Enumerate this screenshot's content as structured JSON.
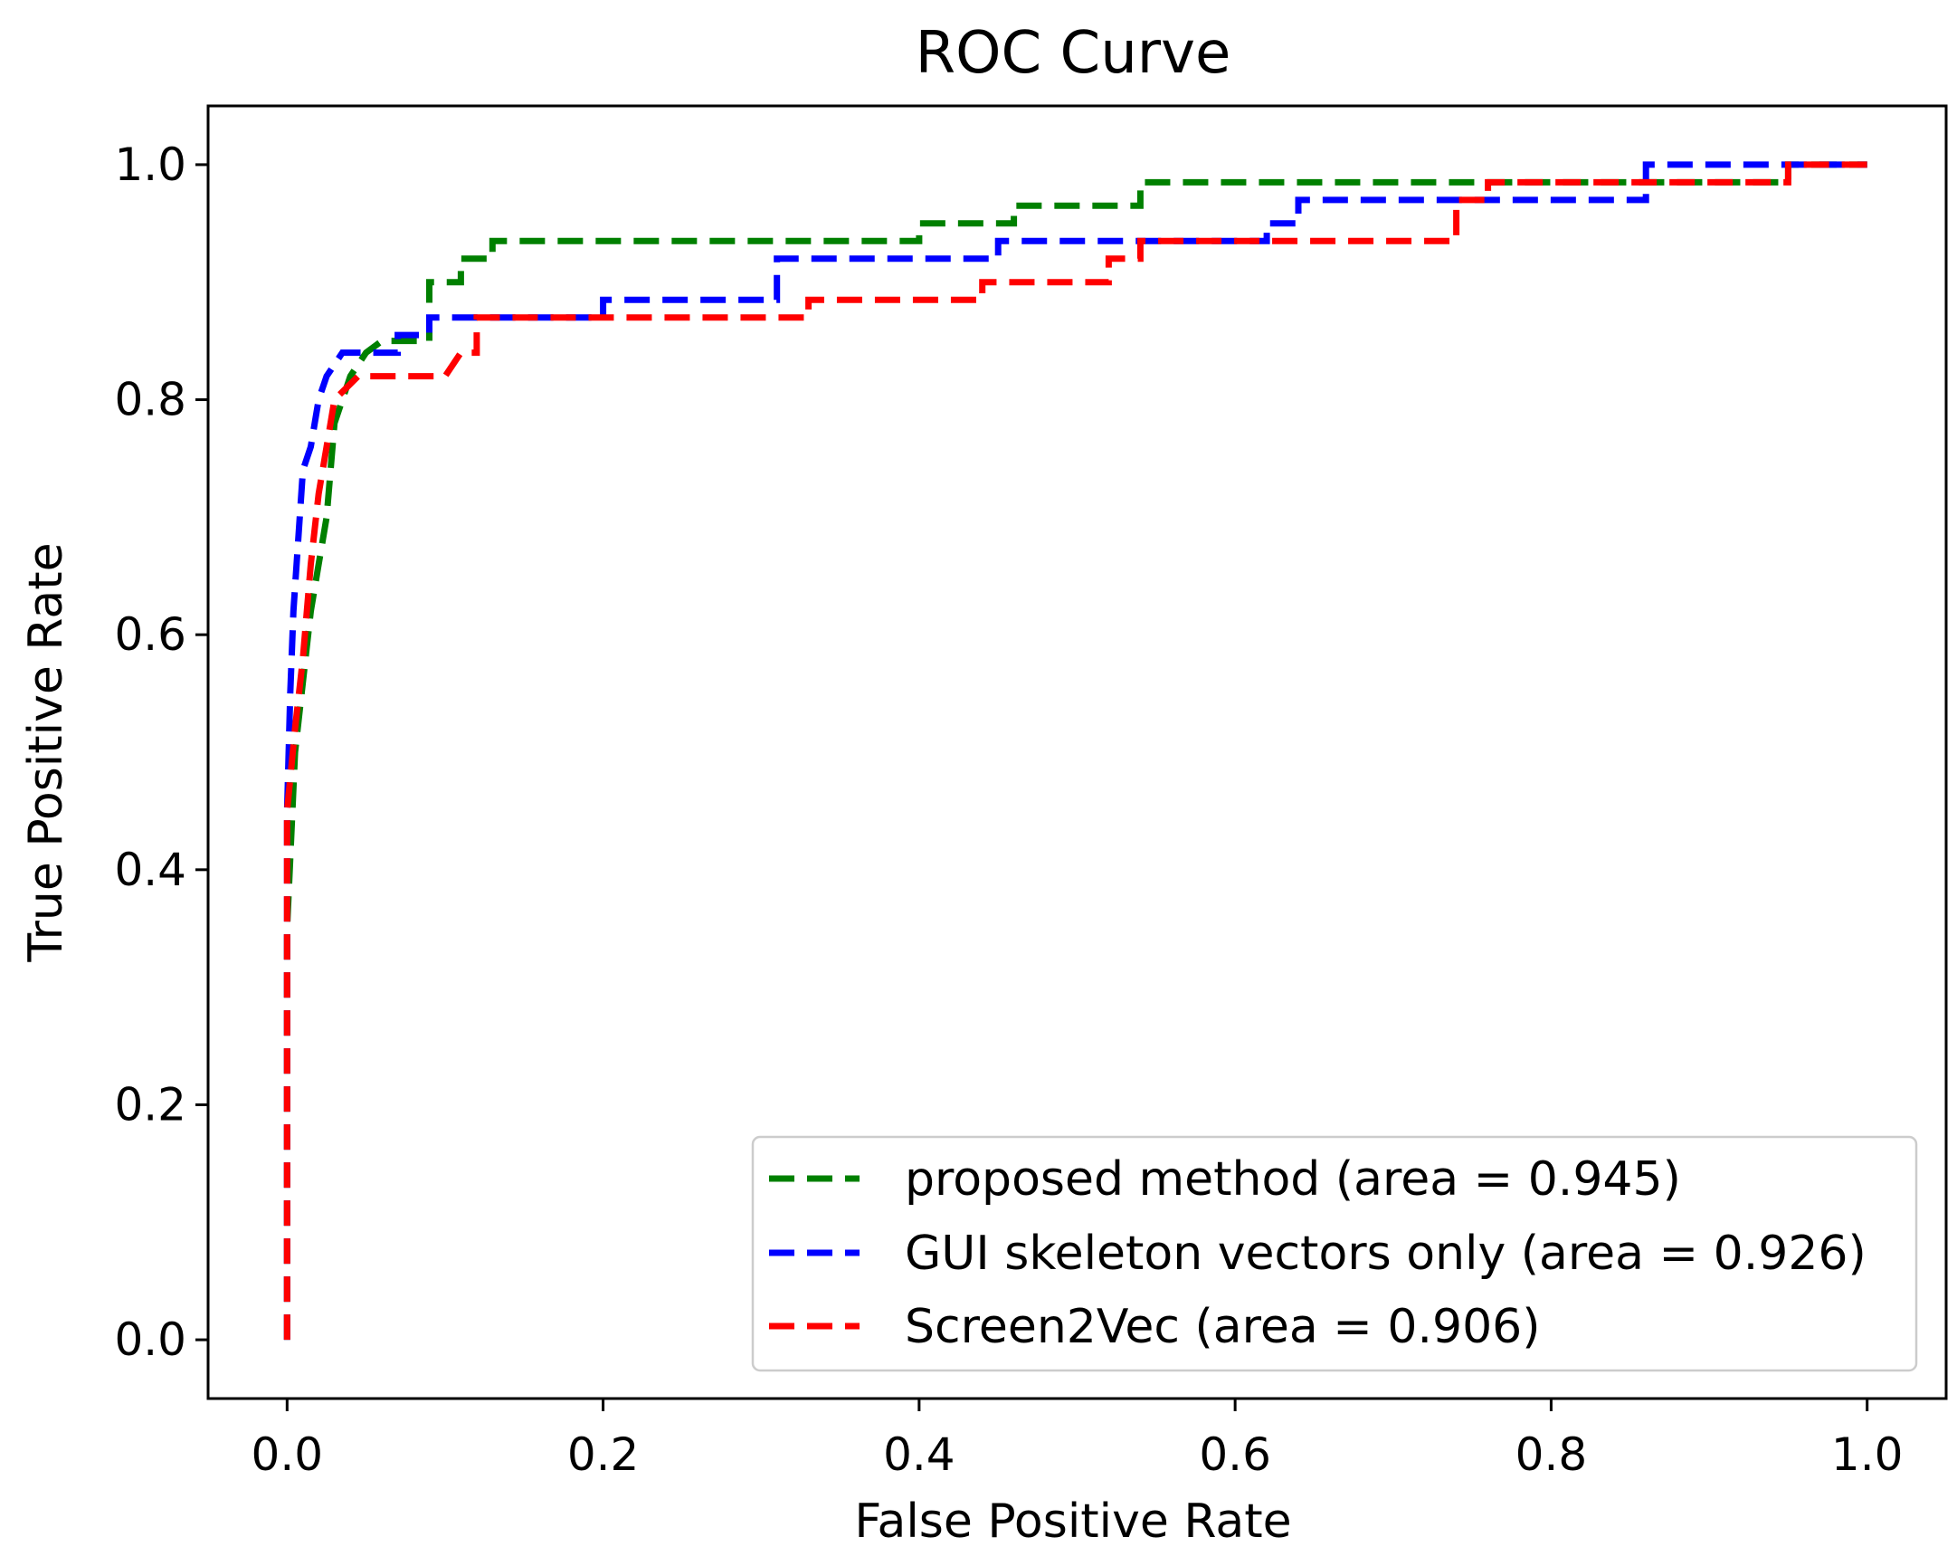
{
  "chart_data": {
    "type": "line",
    "title": "ROC Curve",
    "xlabel": "False Positive Rate",
    "ylabel": "True Positive Rate",
    "xlim": [
      -0.05,
      1.05
    ],
    "ylim": [
      -0.05,
      1.05
    ],
    "x_ticks": [
      0.0,
      0.2,
      0.4,
      0.6,
      0.8,
      1.0
    ],
    "y_ticks": [
      0.0,
      0.2,
      0.4,
      0.6,
      0.8,
      1.0
    ],
    "x_tick_labels": [
      "0.0",
      "0.2",
      "0.4",
      "0.6",
      "0.8",
      "1.0"
    ],
    "y_tick_labels": [
      "0.0",
      "0.2",
      "0.4",
      "0.6",
      "0.8",
      "1.0"
    ],
    "grid": false,
    "legend_position": "lower-right",
    "series": [
      {
        "name": "proposed method (area = 0.945)",
        "color": "#008000",
        "dash": "dashed",
        "points": [
          [
            0.0,
            0.0
          ],
          [
            0.0,
            0.35
          ],
          [
            0.005,
            0.5
          ],
          [
            0.01,
            0.56
          ],
          [
            0.015,
            0.62
          ],
          [
            0.02,
            0.66
          ],
          [
            0.025,
            0.7
          ],
          [
            0.03,
            0.78
          ],
          [
            0.04,
            0.82
          ],
          [
            0.05,
            0.84
          ],
          [
            0.06,
            0.85
          ],
          [
            0.09,
            0.85
          ],
          [
            0.09,
            0.9
          ],
          [
            0.11,
            0.9
          ],
          [
            0.11,
            0.92
          ],
          [
            0.13,
            0.92
          ],
          [
            0.13,
            0.935
          ],
          [
            0.4,
            0.935
          ],
          [
            0.4,
            0.95
          ],
          [
            0.46,
            0.95
          ],
          [
            0.46,
            0.965
          ],
          [
            0.54,
            0.965
          ],
          [
            0.54,
            0.985
          ],
          [
            0.95,
            0.985
          ],
          [
            0.95,
            1.0
          ],
          [
            1.0,
            1.0
          ]
        ]
      },
      {
        "name": "GUI skeleton vectors only (area = 0.926)",
        "color": "#0000ff",
        "dash": "dashed",
        "points": [
          [
            0.0,
            0.0
          ],
          [
            0.0,
            0.45
          ],
          [
            0.002,
            0.55
          ],
          [
            0.004,
            0.62
          ],
          [
            0.006,
            0.66
          ],
          [
            0.008,
            0.7
          ],
          [
            0.01,
            0.74
          ],
          [
            0.015,
            0.76
          ],
          [
            0.02,
            0.8
          ],
          [
            0.025,
            0.82
          ],
          [
            0.035,
            0.84
          ],
          [
            0.07,
            0.84
          ],
          [
            0.07,
            0.855
          ],
          [
            0.09,
            0.855
          ],
          [
            0.09,
            0.87
          ],
          [
            0.2,
            0.87
          ],
          [
            0.2,
            0.885
          ],
          [
            0.31,
            0.885
          ],
          [
            0.31,
            0.92
          ],
          [
            0.45,
            0.92
          ],
          [
            0.45,
            0.935
          ],
          [
            0.62,
            0.935
          ],
          [
            0.62,
            0.95
          ],
          [
            0.64,
            0.95
          ],
          [
            0.64,
            0.97
          ],
          [
            0.86,
            0.97
          ],
          [
            0.86,
            1.0
          ],
          [
            1.0,
            1.0
          ]
        ]
      },
      {
        "name": "Screen2Vec (area = 0.906)",
        "color": "#ff0000",
        "dash": "dashed",
        "points": [
          [
            0.0,
            0.0
          ],
          [
            0.0,
            0.45
          ],
          [
            0.005,
            0.52
          ],
          [
            0.01,
            0.58
          ],
          [
            0.015,
            0.66
          ],
          [
            0.02,
            0.72
          ],
          [
            0.025,
            0.76
          ],
          [
            0.03,
            0.8
          ],
          [
            0.045,
            0.82
          ],
          [
            0.1,
            0.82
          ],
          [
            0.11,
            0.84
          ],
          [
            0.12,
            0.84
          ],
          [
            0.12,
            0.87
          ],
          [
            0.33,
            0.87
          ],
          [
            0.33,
            0.885
          ],
          [
            0.44,
            0.885
          ],
          [
            0.44,
            0.9
          ],
          [
            0.52,
            0.9
          ],
          [
            0.52,
            0.92
          ],
          [
            0.54,
            0.92
          ],
          [
            0.54,
            0.935
          ],
          [
            0.74,
            0.935
          ],
          [
            0.74,
            0.97
          ],
          [
            0.76,
            0.97
          ],
          [
            0.76,
            0.985
          ],
          [
            0.95,
            0.985
          ],
          [
            0.95,
            1.0
          ],
          [
            1.0,
            1.0
          ]
        ]
      }
    ]
  }
}
